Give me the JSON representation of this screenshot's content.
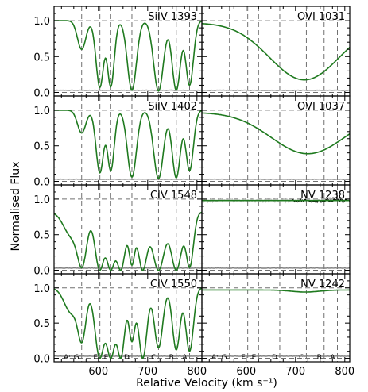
{
  "figure": {
    "ylabel": "Normalised Flux",
    "xlabel": "Relative Velocity (km s⁻¹)"
  },
  "colors": {
    "data": "#000000",
    "model": "#1f7a1f",
    "error": "#7f7f7f",
    "masked": "#c8c8c8",
    "guide": "#707070"
  },
  "chart_data": {
    "type": "line",
    "grid": false,
    "xlim": [
      510,
      810
    ],
    "ylim": [
      -0.05,
      1.2
    ],
    "x_ticks": [
      600,
      700,
      800
    ],
    "y_ticks": [
      0.0,
      0.5,
      1.0
    ],
    "y_tick_labels": [
      "0.0",
      "0.5",
      "1.0"
    ],
    "reference_lines_y": [
      0.0,
      1.0
    ],
    "components": [
      {
        "label": "A",
        "v": 785
      },
      {
        "label": "B",
        "v": 758
      },
      {
        "label": "C",
        "v": 722
      },
      {
        "label": "D",
        "v": 668
      },
      {
        "label": "E",
        "v": 625
      },
      {
        "label": "F",
        "v": 603
      },
      {
        "label": "G",
        "v": 566
      }
    ],
    "component_legend": "A:",
    "panels": [
      {
        "title": "SiIV 1393",
        "continuum": 1.0,
        "features": [
          {
            "v": 566,
            "depth": 0.4,
            "width": 12
          },
          {
            "v": 603,
            "depth": 0.93,
            "width": 11
          },
          {
            "v": 625,
            "depth": 0.92,
            "width": 10
          },
          {
            "v": 668,
            "depth": 0.97,
            "width": 13
          },
          {
            "v": 722,
            "depth": 0.98,
            "width": 14
          },
          {
            "v": 758,
            "depth": 0.97,
            "width": 12
          },
          {
            "v": 785,
            "depth": 0.9,
            "width": 11
          }
        ]
      },
      {
        "title": "OVI 1031",
        "continuum": 0.97,
        "features": [
          {
            "v": 718,
            "depth": 0.82,
            "width": 100
          }
        ]
      },
      {
        "title": "SiIV 1402",
        "continuum": 1.0,
        "features": [
          {
            "v": 566,
            "depth": 0.32,
            "width": 12
          },
          {
            "v": 603,
            "depth": 0.88,
            "width": 11
          },
          {
            "v": 625,
            "depth": 0.85,
            "width": 10
          },
          {
            "v": 668,
            "depth": 0.94,
            "width": 13
          },
          {
            "v": 722,
            "depth": 0.96,
            "width": 14
          },
          {
            "v": 758,
            "depth": 0.95,
            "width": 12
          },
          {
            "v": 785,
            "depth": 0.85,
            "width": 11
          }
        ]
      },
      {
        "title": "OVI 1037",
        "continuum": 0.97,
        "features": [
          {
            "v": 725,
            "depth": 0.6,
            "width": 105
          }
        ]
      },
      {
        "title": "CIV 1548",
        "continuum": 0.82,
        "features": [
          {
            "v": 545,
            "depth": 0.4,
            "width": 22
          },
          {
            "v": 566,
            "depth": 0.95,
            "width": 14
          },
          {
            "v": 603,
            "depth": 1.0,
            "width": 14
          },
          {
            "v": 625,
            "depth": 1.0,
            "width": 14
          },
          {
            "v": 645,
            "depth": 1.0,
            "width": 14
          },
          {
            "v": 668,
            "depth": 0.9,
            "width": 9
          },
          {
            "v": 690,
            "depth": 1.0,
            "width": 14
          },
          {
            "v": 722,
            "depth": 1.0,
            "width": 18
          },
          {
            "v": 758,
            "depth": 1.0,
            "width": 16
          },
          {
            "v": 785,
            "depth": 0.95,
            "width": 11
          }
        ]
      },
      {
        "title": "NV 1238",
        "continuum": 0.98,
        "features": [],
        "masked_range": [
          510,
          690
        ]
      },
      {
        "title": "CIV 1550",
        "continuum": 1.0,
        "features": [
          {
            "v": 545,
            "depth": 0.35,
            "width": 20
          },
          {
            "v": 566,
            "depth": 0.75,
            "width": 12
          },
          {
            "v": 603,
            "depth": 1.0,
            "width": 14
          },
          {
            "v": 625,
            "depth": 1.0,
            "width": 14
          },
          {
            "v": 645,
            "depth": 1.0,
            "width": 12
          },
          {
            "v": 668,
            "depth": 0.75,
            "width": 9
          },
          {
            "v": 690,
            "depth": 1.0,
            "width": 12
          },
          {
            "v": 722,
            "depth": 0.85,
            "width": 12
          },
          {
            "v": 758,
            "depth": 0.88,
            "width": 11
          },
          {
            "v": 785,
            "depth": 0.9,
            "width": 11
          }
        ]
      },
      {
        "title": "NV 1242",
        "continuum": 0.97,
        "features": [
          {
            "v": 720,
            "depth": 0.03,
            "width": 40
          }
        ]
      }
    ]
  }
}
